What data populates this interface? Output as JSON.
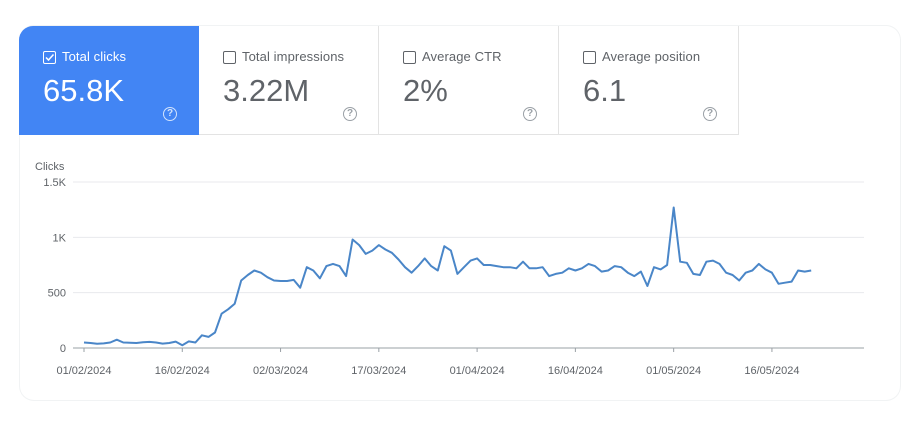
{
  "metrics": [
    {
      "label": "Total clicks",
      "value": "65.8K",
      "selected": true
    },
    {
      "label": "Total impressions",
      "value": "3.22M",
      "selected": false
    },
    {
      "label": "Average CTR",
      "value": "2%",
      "selected": false
    },
    {
      "label": "Average position",
      "value": "6.1",
      "selected": false
    }
  ],
  "help_glyph": "?",
  "colors": {
    "accent": "#4285f4",
    "line": "#4a86c8",
    "grid": "#e8eaed"
  },
  "chart_data": {
    "type": "line",
    "ylabel": "Clicks",
    "ylim": [
      0,
      1500
    ],
    "yticks": [
      0,
      500,
      1000,
      1500
    ],
    "ytick_labels": [
      "0",
      "500",
      "1K",
      "1.5K"
    ],
    "xtick_labels": [
      "01/02/2024",
      "16/02/2024",
      "02/03/2024",
      "17/03/2024",
      "01/04/2024",
      "16/04/2024",
      "01/05/2024",
      "16/05/2024"
    ],
    "x_start": "2024-02-01",
    "x_end": "2024-05-27",
    "series": [
      {
        "values": [
          50,
          45,
          38,
          42,
          50,
          75,
          50,
          48,
          45,
          52,
          55,
          50,
          40,
          45,
          58,
          25,
          60,
          50,
          115,
          100,
          140,
          310,
          350,
          400,
          610,
          660,
          700,
          680,
          640,
          610,
          605,
          605,
          615,
          545,
          730,
          700,
          630,
          740,
          760,
          740,
          650,
          980,
          930,
          850,
          880,
          930,
          890,
          860,
          800,
          730,
          680,
          740,
          810,
          740,
          700,
          920,
          880,
          670,
          730,
          790,
          810,
          750,
          750,
          740,
          730,
          730,
          720,
          780,
          720,
          720,
          730,
          650,
          670,
          680,
          720,
          700,
          720,
          760,
          740,
          690,
          700,
          740,
          730,
          680,
          650,
          690,
          560,
          730,
          710,
          750,
          1270,
          780,
          770,
          670,
          660,
          780,
          790,
          760,
          680,
          660,
          610,
          680,
          700,
          760,
          710,
          680,
          580,
          590,
          600,
          700,
          690,
          700
        ]
      }
    ]
  }
}
